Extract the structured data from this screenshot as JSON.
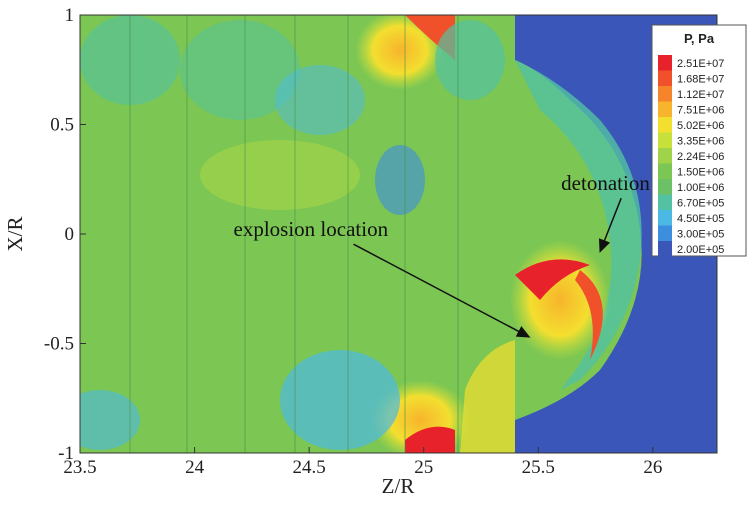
{
  "chart_data": {
    "type": "contour",
    "x_label": "Z/R",
    "y_label": "X/R",
    "xlim": [
      23.5,
      26.28
    ],
    "ylim": [
      -1,
      1
    ],
    "xticks": [
      23.5,
      24,
      24.5,
      25,
      25.5,
      26
    ],
    "yticks": [
      -1,
      -0.5,
      0,
      0.5,
      1
    ],
    "colorbar": {
      "title": "P, Pa",
      "levels": [
        {
          "value": 25100000,
          "label": "2.51E+07"
        },
        {
          "value": 16800000,
          "label": "1.68E+07"
        },
        {
          "value": 11200000,
          "label": "1.12E+07"
        },
        {
          "value": 7510000,
          "label": "7.51E+06"
        },
        {
          "value": 5020000,
          "label": "5.02E+06"
        },
        {
          "value": 3350000,
          "label": "3.35E+06"
        },
        {
          "value": 2240000,
          "label": "2.24E+06"
        },
        {
          "value": 1500000,
          "label": "1.50E+06"
        },
        {
          "value": 1000000,
          "label": "1.00E+06"
        },
        {
          "value": 670000,
          "label": "6.70E+05"
        },
        {
          "value": 450000,
          "label": "4.50E+05"
        },
        {
          "value": 300000,
          "label": "3.00E+05"
        },
        {
          "value": 200000,
          "label": "2.00E+05"
        }
      ],
      "colors": [
        "#e8222a",
        "#f0512a",
        "#f5842a",
        "#f7b42c",
        "#f3df2f",
        "#c8e03a",
        "#9fd34a",
        "#7cc653",
        "#6cc066",
        "#52c2a3",
        "#4bb9e3",
        "#3e8ee0",
        "#3a56b8"
      ]
    },
    "annotations": [
      {
        "text": "detonation",
        "x": 25.6,
        "y": 0.2,
        "arrow_to": [
          25.77,
          -0.08
        ]
      },
      {
        "text": "explosion location",
        "x": 24.17,
        "y": -0.01,
        "arrow_to": [
          25.46,
          -0.47
        ]
      }
    ]
  }
}
